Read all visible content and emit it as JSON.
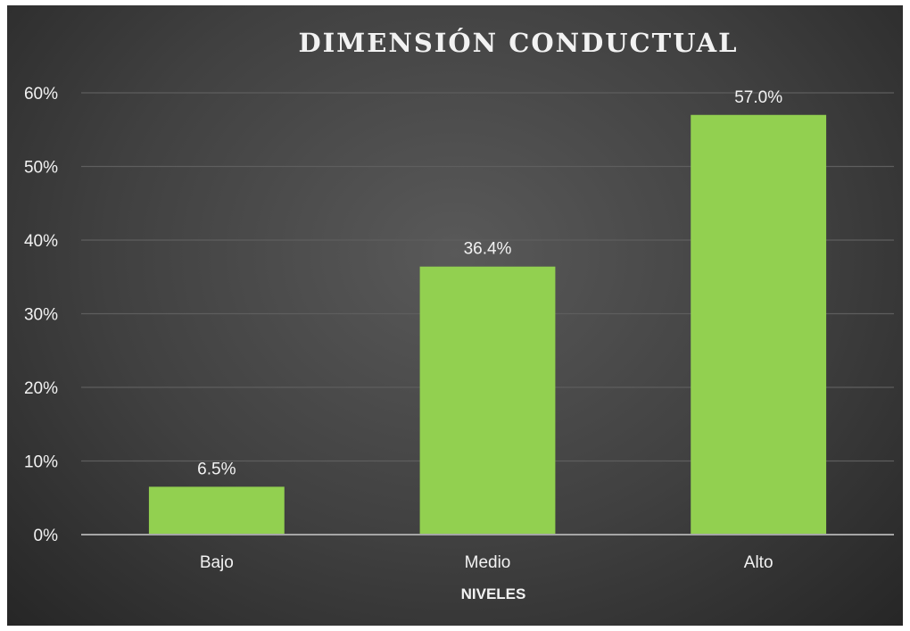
{
  "chart_data": {
    "type": "bar",
    "title": "DIMENSIÓN CONDUCTUAL",
    "xlabel": "NIVELES",
    "ylabel": "",
    "categories": [
      "Bajo",
      "Medio",
      "Alto"
    ],
    "values": [
      6.5,
      36.4,
      57.0
    ],
    "data_labels": [
      "6.5%",
      "36.4%",
      "57.0%"
    ],
    "ylim": [
      0,
      60
    ],
    "y_ticks": [
      0,
      10,
      20,
      30,
      40,
      50,
      60
    ],
    "y_tick_labels": [
      "0%",
      "10%",
      "20%",
      "30%",
      "40%",
      "50%",
      "60%"
    ],
    "grid": true,
    "legend": "none",
    "colors": {
      "bar": "#92d050",
      "background": "#404040",
      "text": "#f2f2f2",
      "gridline": "#5e5e5e",
      "axis": "#a6a6a6"
    }
  }
}
